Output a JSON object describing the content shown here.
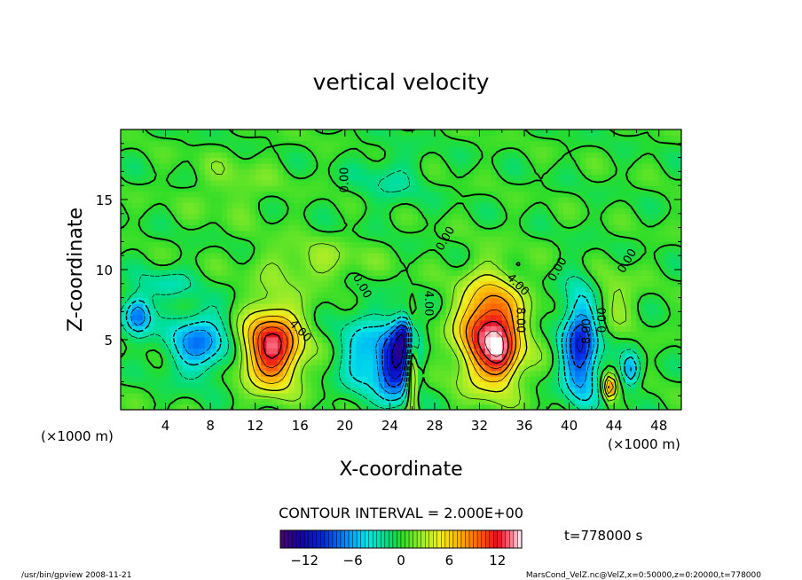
{
  "chart_data": {
    "type": "heatmap",
    "title": "vertical velocity",
    "xlabel": "X-coordinate",
    "ylabel": "Z-coordinate",
    "x_unit_left": "(×1000 m)",
    "x_unit_right": "(×1000 m)",
    "xlim": [
      0,
      50
    ],
    "ylim": [
      0,
      20
    ],
    "x_ticks": [
      "4",
      "8",
      "12",
      "16",
      "20",
      "24",
      "28",
      "32",
      "36",
      "40",
      "44",
      "48"
    ],
    "x_tick_values": [
      4,
      8,
      12,
      16,
      20,
      24,
      28,
      32,
      36,
      40,
      44,
      48
    ],
    "y_ticks": [
      "5",
      "10",
      "15"
    ],
    "y_tick_values": [
      5,
      10,
      15
    ],
    "contour_interval_label": "CONTOUR INTERVAL = 2.000E+00",
    "time_label": "t=778000 s",
    "colorbar": {
      "min": -15,
      "max": 15,
      "ticks": [
        "−12",
        "−6",
        "0",
        "6",
        "12"
      ],
      "tick_values": [
        -12,
        -6,
        0,
        6,
        12
      ]
    },
    "contour_labels": [
      {
        "text": "0.00",
        "x": 20.0,
        "z": 16.4,
        "angle": -90
      },
      {
        "text": "0.00",
        "x": 21.5,
        "z": 8.8,
        "angle": 60
      },
      {
        "text": "0.00",
        "x": 29.0,
        "z": 12.2,
        "angle": -60
      },
      {
        "text": "0.00",
        "x": 39.0,
        "z": 10.0,
        "angle": -60
      },
      {
        "text": "0.00",
        "x": 45.2,
        "z": 10.6,
        "angle": -60
      },
      {
        "text": "4.00",
        "x": 16.0,
        "z": 5.6,
        "angle": 45
      },
      {
        "text": "4.00",
        "x": 27.4,
        "z": 7.6,
        "angle": 90
      },
      {
        "text": "4.00",
        "x": 35.4,
        "z": 8.9,
        "angle": 45
      },
      {
        "text": "8.00",
        "x": 35.6,
        "z": 6.4,
        "angle": 90
      },
      {
        "text": "8.00",
        "x": 41.6,
        "z": 5.6,
        "angle": -90
      },
      {
        "text": "0.00",
        "x": 43.0,
        "z": 6.4,
        "angle": -90
      }
    ],
    "features": [
      {
        "x": 13.5,
        "z": 4.5,
        "sx": 2.6,
        "sz": 2.8,
        "amp": 13
      },
      {
        "x": 33.0,
        "z": 5.5,
        "sx": 2.8,
        "sz": 3.6,
        "amp": 13.5
      },
      {
        "x": 34.0,
        "z": 3.8,
        "sx": 1.2,
        "sz": 1.6,
        "amp": 4
      },
      {
        "x": 26.0,
        "z": 3.0,
        "sx": 0.45,
        "sz": 3.2,
        "amp": 8
      },
      {
        "x": 43.6,
        "z": 1.6,
        "sx": 0.6,
        "sz": 0.9,
        "amp": 9
      },
      {
        "x": 24.5,
        "z": 3.3,
        "sx": 1.6,
        "sz": 2.4,
        "amp": -12
      },
      {
        "x": 25.4,
        "z": 5.5,
        "sx": 1.0,
        "sz": 1.4,
        "amp": -8
      },
      {
        "x": 41.0,
        "z": 4.5,
        "sx": 1.6,
        "sz": 3.8,
        "amp": -10
      },
      {
        "x": 7.0,
        "z": 4.8,
        "sx": 2.8,
        "sz": 2.2,
        "amp": -7
      },
      {
        "x": 1.5,
        "z": 6.8,
        "sx": 1.2,
        "sz": 1.4,
        "amp": -8
      },
      {
        "x": 45.5,
        "z": 2.8,
        "sx": 0.8,
        "sz": 1.2,
        "amp": -6
      },
      {
        "x": 21.5,
        "z": 4.0,
        "sx": 2.0,
        "sz": 3.0,
        "amp": -5
      },
      {
        "x": 17.0,
        "z": 10.5,
        "sx": 5.0,
        "sz": 1.6,
        "amp": 2.5
      },
      {
        "x": 24.0,
        "z": 16.5,
        "sx": 3.0,
        "sz": 2.0,
        "amp": -2.0
      },
      {
        "x": 10.0,
        "z": 16.0,
        "sx": 4.0,
        "sz": 2.2,
        "amp": 1.5
      },
      {
        "x": 44.0,
        "z": 8.0,
        "sx": 2.0,
        "sz": 2.0,
        "amp": 2.5
      },
      {
        "x": 4.0,
        "z": 9.0,
        "sx": 2.5,
        "sz": 1.2,
        "amp": -2.5
      }
    ]
  },
  "footer": {
    "left": "/usr/bin/gpview  2008-11-21",
    "right": "MarsCond_VelZ.nc@VelZ,x=0:50000,z=0:20000,t=778000"
  }
}
